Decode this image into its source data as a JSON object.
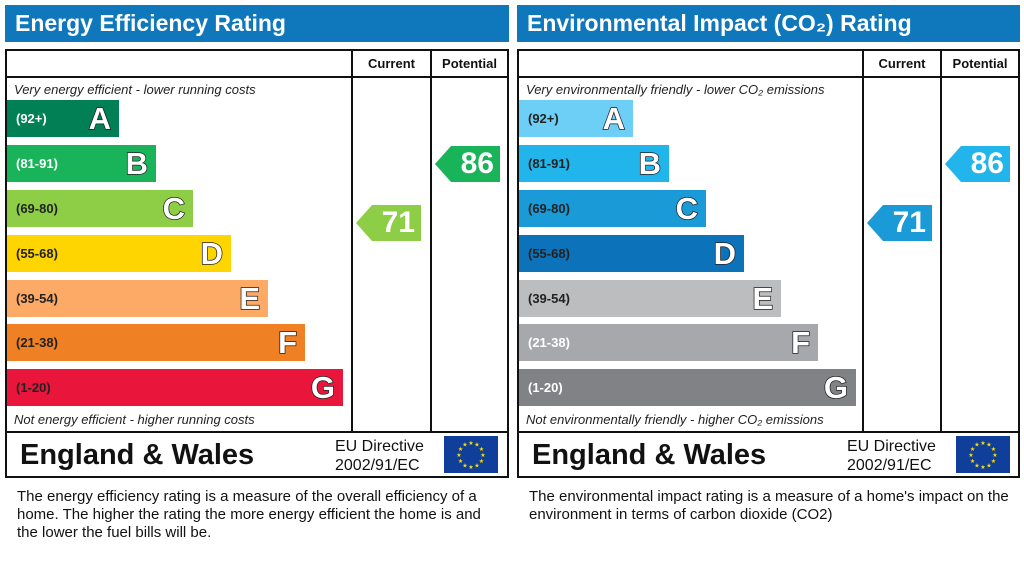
{
  "chart_data": [
    {
      "type": "bar",
      "title": "Energy Efficiency Rating",
      "columns": [
        "Current",
        "Potential"
      ],
      "top_note": "Very energy efficient - lower running costs",
      "bottom_note": "Not energy efficient - higher running costs",
      "bands": [
        {
          "range": "(92+)",
          "letter": "A",
          "color": "#008054",
          "text_color": "#ffffff"
        },
        {
          "range": "(81-91)",
          "letter": "B",
          "color": "#19b459",
          "text_color": "#ffffff"
        },
        {
          "range": "(69-80)",
          "letter": "C",
          "color": "#8dce46",
          "text_color": "#222222"
        },
        {
          "range": "(55-68)",
          "letter": "D",
          "color": "#ffd500",
          "text_color": "#222222"
        },
        {
          "range": "(39-54)",
          "letter": "E",
          "color": "#fcaa65",
          "text_color": "#222222"
        },
        {
          "range": "(21-38)",
          "letter": "F",
          "color": "#ef8023",
          "text_color": "#222222"
        },
        {
          "range": "(1-20)",
          "letter": "G",
          "color": "#e9153b",
          "text_color": "#222222"
        }
      ],
      "current": {
        "value": 71,
        "band": "C",
        "color": "#8dce46"
      },
      "potential": {
        "value": 86,
        "band": "B",
        "color": "#19b459"
      },
      "region": "England & Wales",
      "directive": [
        "EU Directive",
        "2002/91/EC"
      ],
      "description": "The energy efficiency rating is a measure of the overall efficiency of a home.  The higher the rating the more energy efficient the home is and the lower the fuel bills will be."
    },
    {
      "type": "bar",
      "title": "Environmental Impact (CO₂) Rating",
      "columns": [
        "Current",
        "Potential"
      ],
      "top_note": "Very environmentally friendly - lower CO₂ emissions",
      "bottom_note": "Not environmentally friendly - higher CO₂ emissions",
      "bands": [
        {
          "range": "(92+)",
          "letter": "A",
          "color": "#6dcff6",
          "text_color": "#222222"
        },
        {
          "range": "(81-91)",
          "letter": "B",
          "color": "#22b5eb",
          "text_color": "#222222"
        },
        {
          "range": "(69-80)",
          "letter": "C",
          "color": "#1a9ad6",
          "text_color": "#222222"
        },
        {
          "range": "(55-68)",
          "letter": "D",
          "color": "#0c72ba",
          "text_color": "#222222"
        },
        {
          "range": "(39-54)",
          "letter": "E",
          "color": "#bbbdbf",
          "text_color": "#222222"
        },
        {
          "range": "(21-38)",
          "letter": "F",
          "color": "#a6a8ab",
          "text_color": "#ffffff"
        },
        {
          "range": "(1-20)",
          "letter": "G",
          "color": "#808285",
          "text_color": "#ffffff"
        }
      ],
      "current": {
        "value": 71,
        "band": "C",
        "color": "#1a9ad6"
      },
      "potential": {
        "value": 86,
        "band": "B",
        "color": "#22b5eb"
      },
      "region": "England & Wales",
      "directive": [
        "EU Directive",
        "2002/91/EC"
      ],
      "description": "The environmental impact rating is a measure of a home's impact on the environment in terms of carbon dioxide (CO2)"
    }
  ]
}
